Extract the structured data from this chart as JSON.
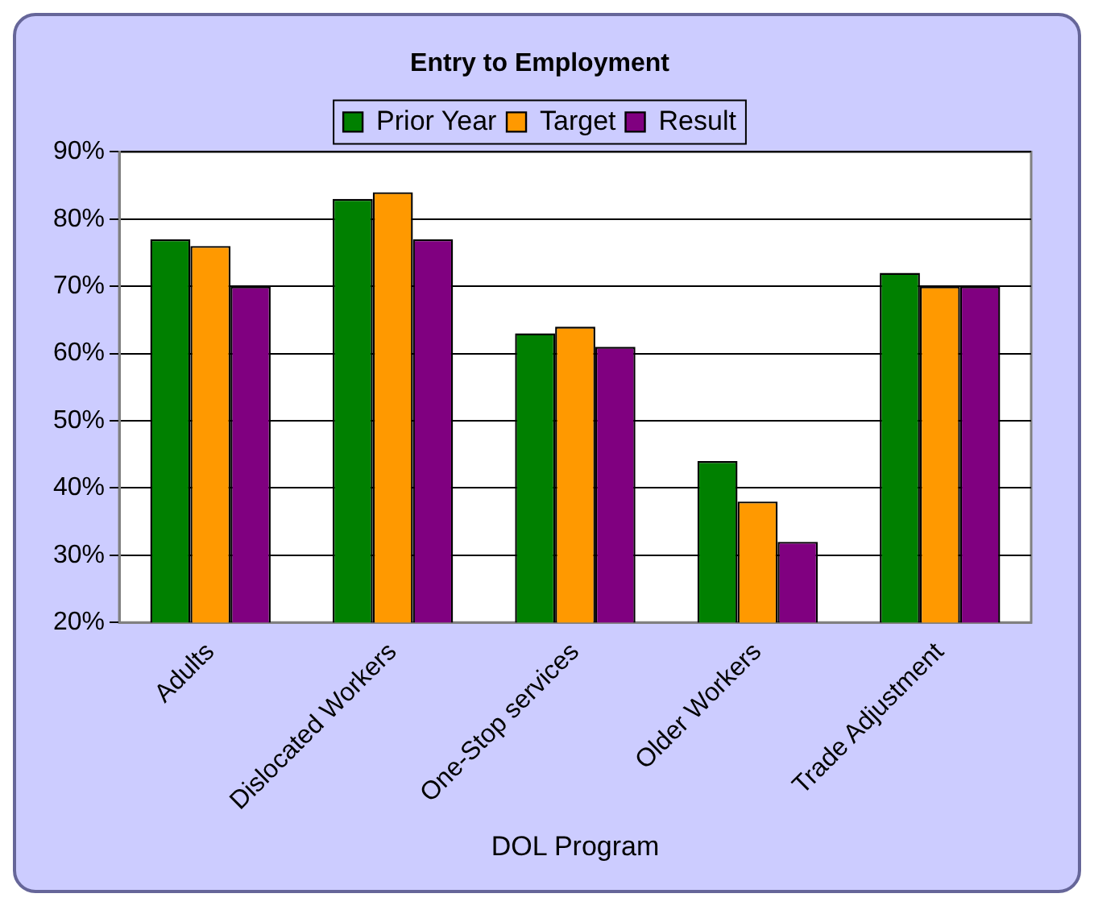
{
  "chart_data": {
    "type": "bar",
    "title": "Entry to Employment",
    "xlabel": "DOL Program",
    "categories": [
      "Adults",
      "Dislocated Workers",
      "One-Stop services",
      "Older Workers",
      "Trade Adjustment"
    ],
    "series": [
      {
        "name": "Prior Year",
        "color": "#008000",
        "values": [
          77,
          83,
          63,
          44,
          72
        ]
      },
      {
        "name": "Target",
        "color": "#ff9900",
        "values": [
          76,
          84,
          64,
          38,
          70
        ]
      },
      {
        "name": "Result",
        "color": "#800080",
        "values": [
          70,
          77,
          61,
          32,
          70
        ]
      }
    ],
    "ylim": [
      20,
      90
    ],
    "yticks": [
      {
        "value": 20,
        "label": "20%"
      },
      {
        "value": 30,
        "label": "30%"
      },
      {
        "value": 40,
        "label": "40%"
      },
      {
        "value": 50,
        "label": "50%"
      },
      {
        "value": 60,
        "label": "60%"
      },
      {
        "value": 70,
        "label": "70%"
      },
      {
        "value": 80,
        "label": "80%"
      },
      {
        "value": 90,
        "label": "90%"
      }
    ],
    "grid": "y",
    "legend": "top"
  }
}
